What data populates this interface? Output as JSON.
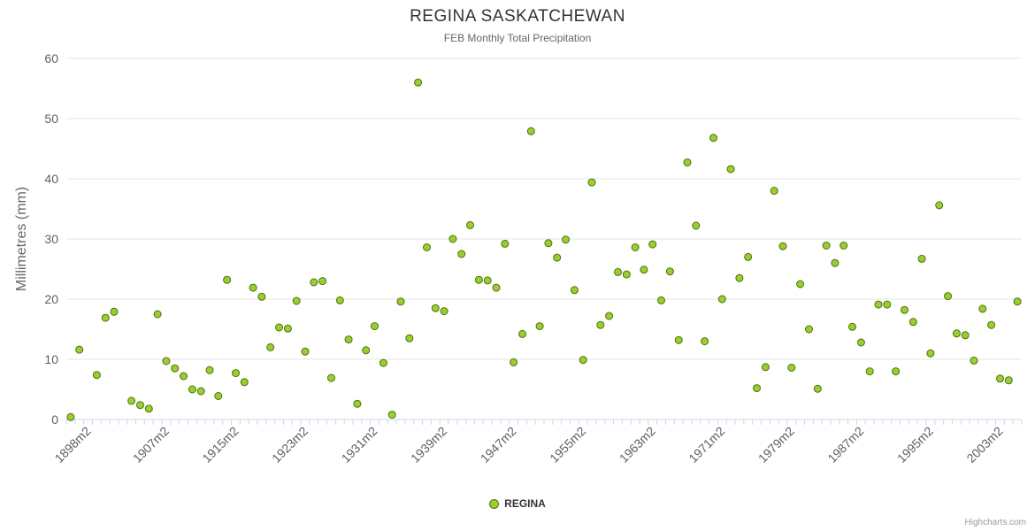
{
  "credits": "Highcharts.com",
  "chart_data": {
    "type": "scatter",
    "title": "REGINA SASKATCHEWAN",
    "subtitle": "FEB Monthly Total Precipitation",
    "ylabel": "Millimetres (mm)",
    "ylim": [
      0,
      60
    ],
    "ytick_interval": 10,
    "grid": true,
    "legend_position": "bottom-center",
    "colors": {
      "grid": "#e6e6e6",
      "axis_line": "#ccd6eb",
      "axis_label": "#606060",
      "title": "#333333",
      "subtitle": "#666666",
      "yaxis_title": "#666666",
      "credits": "#999999"
    },
    "x_axis": {
      "first_year": 1896,
      "last_year": 2005,
      "category_suffix": "m2",
      "tick_labels": [
        "1898m2",
        "1907m2",
        "1915m2",
        "1923m2",
        "1931m2",
        "1939m2",
        "1947m2",
        "1955m2",
        "1963m2",
        "1971m2",
        "1979m2",
        "1987m2",
        "1995m2",
        "2003m2"
      ]
    },
    "series": [
      {
        "name": "REGINA",
        "marker_fill": "#9acd32",
        "marker_line": "#4d7309",
        "points": [
          [
            1896,
            0.4
          ],
          [
            1897,
            11.6
          ],
          [
            1899,
            7.4
          ],
          [
            1900,
            16.9
          ],
          [
            1901,
            17.9
          ],
          [
            1903,
            3.1
          ],
          [
            1904,
            2.4
          ],
          [
            1905,
            1.8
          ],
          [
            1906,
            17.5
          ],
          [
            1907,
            9.7
          ],
          [
            1908,
            8.5
          ],
          [
            1909,
            7.2
          ],
          [
            1910,
            5.0
          ],
          [
            1911,
            4.7
          ],
          [
            1912,
            8.2
          ],
          [
            1913,
            3.9
          ],
          [
            1914,
            23.2
          ],
          [
            1915,
            7.7
          ],
          [
            1916,
            6.2
          ],
          [
            1917,
            21.9
          ],
          [
            1918,
            20.4
          ],
          [
            1919,
            12.0
          ],
          [
            1920,
            15.3
          ],
          [
            1921,
            15.1
          ],
          [
            1922,
            19.7
          ],
          [
            1923,
            11.3
          ],
          [
            1924,
            22.8
          ],
          [
            1925,
            23.0
          ],
          [
            1926,
            6.9
          ],
          [
            1927,
            19.8
          ],
          [
            1928,
            13.3
          ],
          [
            1929,
            2.6
          ],
          [
            1930,
            11.5
          ],
          [
            1931,
            15.5
          ],
          [
            1932,
            9.4
          ],
          [
            1933,
            0.8
          ],
          [
            1934,
            19.6
          ],
          [
            1935,
            13.5
          ],
          [
            1936,
            56.0
          ],
          [
            1937,
            28.6
          ],
          [
            1938,
            18.5
          ],
          [
            1939,
            18.0
          ],
          [
            1940,
            30.0
          ],
          [
            1941,
            27.5
          ],
          [
            1942,
            32.3
          ],
          [
            1943,
            23.2
          ],
          [
            1944,
            23.1
          ],
          [
            1945,
            21.9
          ],
          [
            1946,
            29.2
          ],
          [
            1947,
            9.5
          ],
          [
            1948,
            14.2
          ],
          [
            1949,
            47.9
          ],
          [
            1950,
            15.5
          ],
          [
            1951,
            29.3
          ],
          [
            1952,
            26.9
          ],
          [
            1953,
            29.9
          ],
          [
            1954,
            21.5
          ],
          [
            1955,
            9.9
          ],
          [
            1956,
            39.4
          ],
          [
            1957,
            15.7
          ],
          [
            1958,
            17.2
          ],
          [
            1959,
            24.5
          ],
          [
            1960,
            24.1
          ],
          [
            1961,
            28.6
          ],
          [
            1962,
            24.9
          ],
          [
            1963,
            29.1
          ],
          [
            1964,
            19.8
          ],
          [
            1965,
            24.6
          ],
          [
            1966,
            13.2
          ],
          [
            1967,
            42.7
          ],
          [
            1968,
            32.2
          ],
          [
            1969,
            13.0
          ],
          [
            1970,
            46.8
          ],
          [
            1971,
            20.0
          ],
          [
            1972,
            41.6
          ],
          [
            1973,
            23.5
          ],
          [
            1974,
            27.0
          ],
          [
            1975,
            5.2
          ],
          [
            1976,
            8.7
          ],
          [
            1977,
            38.0
          ],
          [
            1978,
            28.8
          ],
          [
            1979,
            8.6
          ],
          [
            1980,
            22.5
          ],
          [
            1981,
            15.0
          ],
          [
            1982,
            5.1
          ],
          [
            1983,
            28.9
          ],
          [
            1984,
            26.0
          ],
          [
            1985,
            28.9
          ],
          [
            1986,
            15.4
          ],
          [
            1987,
            12.8
          ],
          [
            1988,
            8.0
          ],
          [
            1989,
            19.1
          ],
          [
            1990,
            19.1
          ],
          [
            1991,
            8.0
          ],
          [
            1992,
            18.2
          ],
          [
            1993,
            16.2
          ],
          [
            1994,
            26.7
          ],
          [
            1995,
            11.0
          ],
          [
            1996,
            35.6
          ],
          [
            1997,
            20.5
          ],
          [
            1998,
            14.3
          ],
          [
            1999,
            14.0
          ],
          [
            2000,
            9.8
          ],
          [
            2001,
            18.4
          ],
          [
            2002,
            15.7
          ],
          [
            2003,
            6.8
          ],
          [
            2004,
            6.5
          ],
          [
            2005,
            19.6
          ]
        ]
      }
    ]
  }
}
